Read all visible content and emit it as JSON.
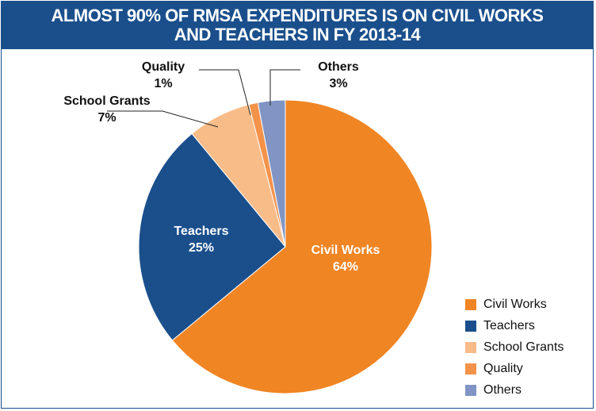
{
  "title": "ALMOST 90% OF RMSA EXPENDITURES IS ON CIVIL WORKS AND TEACHERS IN FY 2013-14",
  "chart_data": {
    "type": "pie",
    "categories": [
      "Civil Works",
      "Teachers",
      "School Grants",
      "Quality",
      "Others"
    ],
    "values": [
      64,
      25,
      7,
      1,
      3
    ],
    "value_labels": [
      "64%",
      "25%",
      "7%",
      "1%",
      "3%"
    ],
    "colors": [
      "#f08524",
      "#1a4f8c",
      "#f8bc88",
      "#f4924a",
      "#8095c4"
    ],
    "start_angle_deg": 0,
    "direction": "clockwise",
    "legend": "bottom-right",
    "slice_labels": "inside for large slices, outside with leader lines for small slices"
  }
}
